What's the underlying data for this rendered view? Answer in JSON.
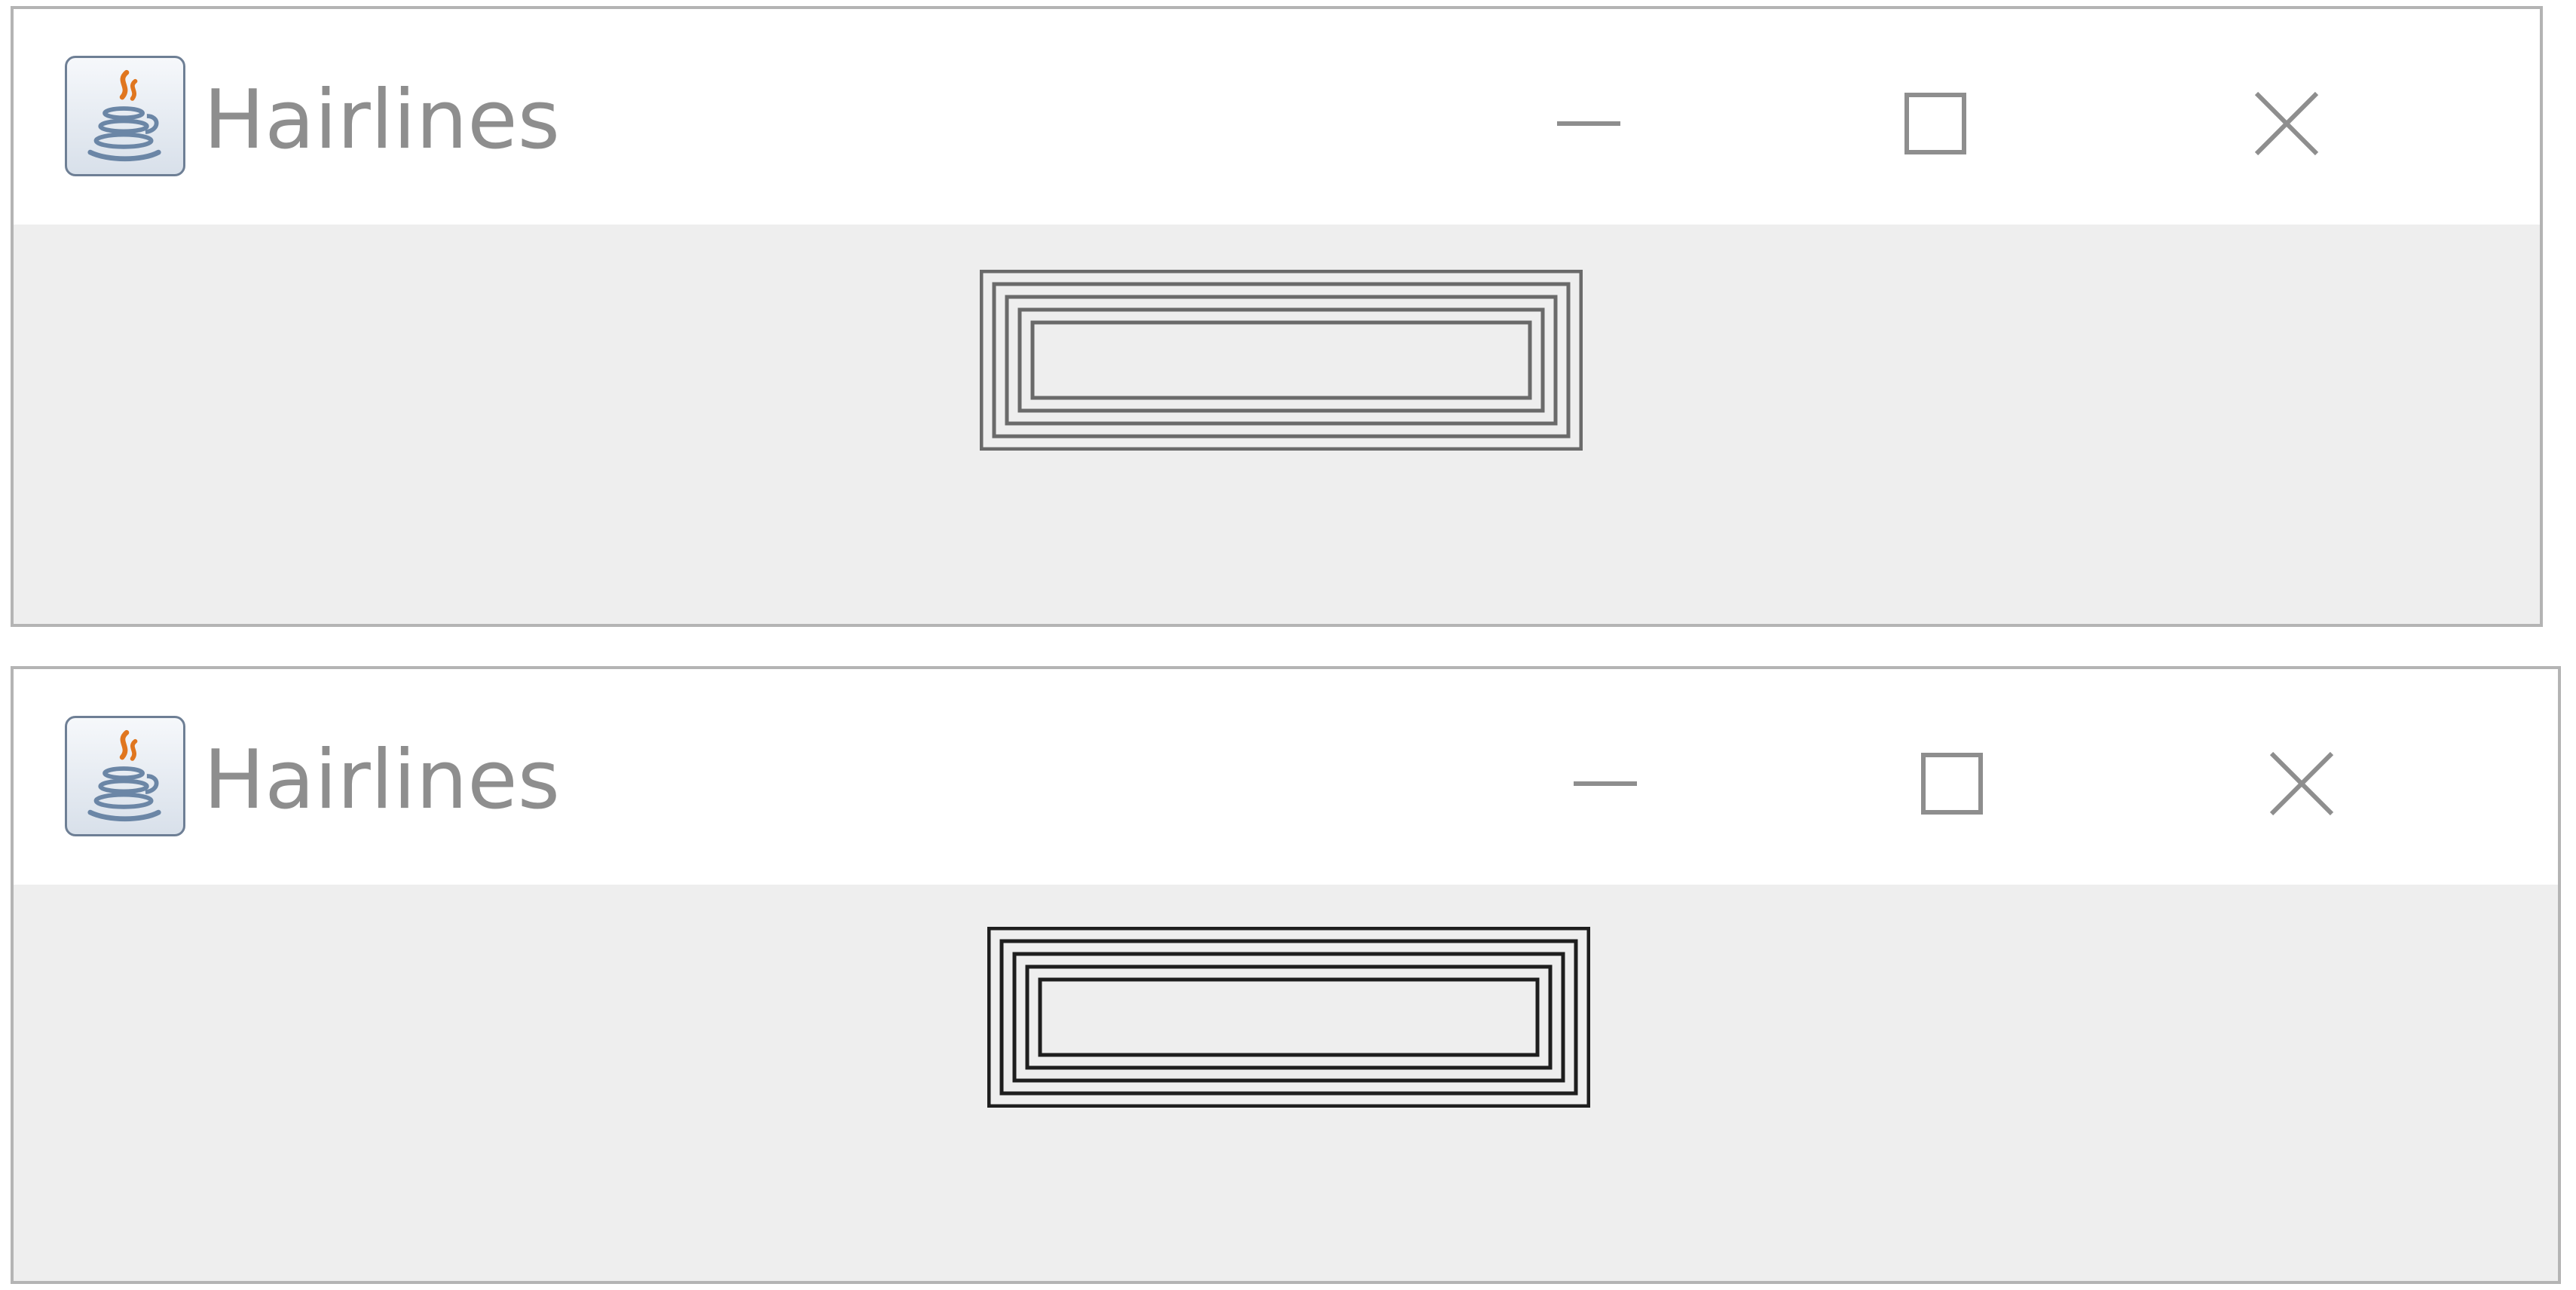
{
  "windows": [
    {
      "title": "Hairlines",
      "controls": {
        "minimize": "minimize-icon",
        "maximize": "maximize-icon",
        "close": "close-icon"
      },
      "rect_count": 5,
      "stroke_color": "#6a6a6a"
    },
    {
      "title": "Hairlines",
      "controls": {
        "minimize": "minimize-icon",
        "maximize": "maximize-icon",
        "close": "close-icon"
      },
      "rect_count": 5,
      "stroke_color": "#1e1e1e"
    }
  ],
  "colors": {
    "titlebar": "#ffffff",
    "content": "#eeeeee",
    "title_text": "#8e8e8e",
    "caption_icon": "#8e8e8e",
    "window_border": "#b4b4b4"
  }
}
